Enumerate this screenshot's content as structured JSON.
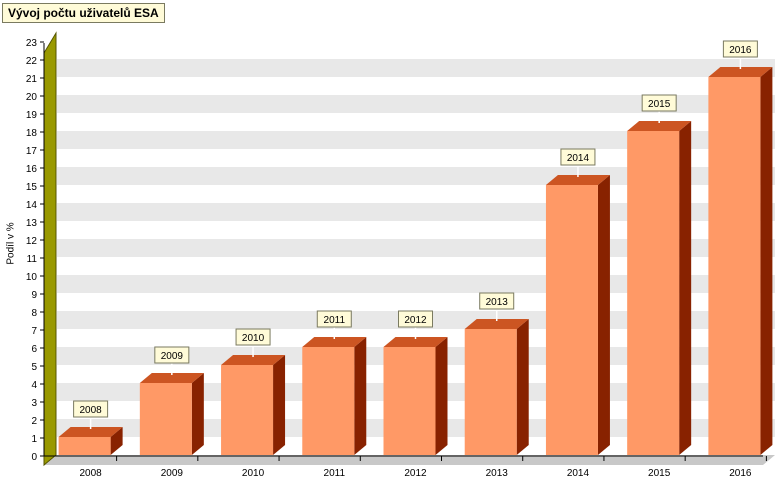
{
  "title": "Vývoj počtu uživatelů ESA",
  "chart_data": {
    "type": "bar",
    "title": "Vývoj počtu uživatelů ESA",
    "xlabel": "",
    "ylabel": "Podíl v %",
    "categories": [
      "2008",
      "2009",
      "2010",
      "2011",
      "2012",
      "2013",
      "2014",
      "2015",
      "2016"
    ],
    "values": [
      1,
      4,
      5,
      6,
      6,
      7,
      15,
      18,
      21
    ],
    "data_labels": [
      "2008",
      "2009",
      "2010",
      "2011",
      "2012",
      "2013",
      "2014",
      "2015",
      "2016"
    ],
    "ylim": [
      0,
      23
    ],
    "yticks": [
      0,
      1,
      2,
      3,
      4,
      5,
      6,
      7,
      8,
      9,
      10,
      11,
      12,
      13,
      14,
      15,
      16,
      17,
      18,
      19,
      20,
      21,
      22,
      23
    ],
    "grid": true,
    "three_d": true,
    "legend": "none",
    "colors": {
      "bar_front": "#ff9966",
      "bar_top": "#cc5522",
      "bar_side": "#882200",
      "axis_wall": "#999900",
      "grid_band": "#e8e8e8",
      "floor": "#c8c8c8",
      "label_bg": "#fffbd8"
    }
  }
}
